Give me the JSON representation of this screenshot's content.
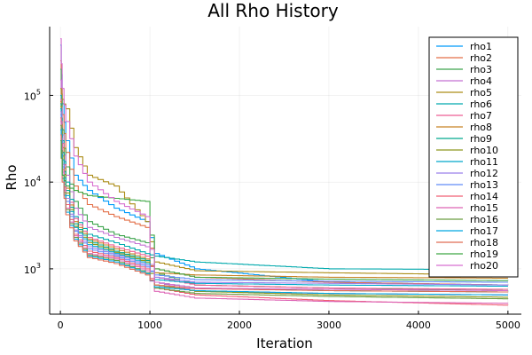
{
  "chart_data": {
    "type": "line",
    "title": "All Rho History",
    "xlabel": "Iteration",
    "ylabel": "Rho",
    "xlim": [
      -120,
      5150
    ],
    "ylim": [
      300,
      620000
    ],
    "yscale": "log",
    "grid": true,
    "legend_position": "top-right",
    "x_ticks": [
      {
        "value": 0,
        "label": "0"
      },
      {
        "value": 1000,
        "label": "1000"
      },
      {
        "value": 2000,
        "label": "2000"
      },
      {
        "value": 3000,
        "label": "3000"
      },
      {
        "value": 4000,
        "label": "4000"
      },
      {
        "value": 5000,
        "label": "5000"
      }
    ],
    "y_ticks": [
      {
        "value": 1000,
        "base": "10",
        "exp": "3"
      },
      {
        "value": 10000,
        "base": "10",
        "exp": "4"
      },
      {
        "value": 100000,
        "base": "10",
        "exp": "5"
      }
    ],
    "series": [
      {
        "name": "rho1",
        "color": "#009AFA",
        "points": [
          [
            0,
            380000
          ],
          [
            20,
            80000
          ],
          [
            60,
            30000
          ],
          [
            150,
            12000
          ],
          [
            300,
            8000
          ],
          [
            600,
            5000
          ],
          [
            950,
            3500
          ],
          [
            1050,
            1500
          ],
          [
            1500,
            1000
          ],
          [
            3000,
            700
          ],
          [
            5000,
            650
          ]
        ]
      },
      {
        "name": "rho2",
        "color": "#E36F47",
        "points": [
          [
            0,
            250000
          ],
          [
            20,
            60000
          ],
          [
            60,
            22000
          ],
          [
            150,
            9000
          ],
          [
            300,
            5500
          ],
          [
            600,
            4000
          ],
          [
            950,
            3000
          ],
          [
            1050,
            1000
          ],
          [
            1500,
            800
          ],
          [
            3000,
            700
          ],
          [
            5000,
            650
          ]
        ]
      },
      {
        "name": "rho3",
        "color": "#3EA44E",
        "points": [
          [
            0,
            200000
          ],
          [
            20,
            40000
          ],
          [
            60,
            15000
          ],
          [
            150,
            6000
          ],
          [
            300,
            3500
          ],
          [
            600,
            2500
          ],
          [
            950,
            2000
          ],
          [
            1050,
            900
          ],
          [
            1500,
            650
          ],
          [
            3000,
            600
          ],
          [
            5000,
            560
          ]
        ]
      },
      {
        "name": "rho4",
        "color": "#C371D2",
        "points": [
          [
            0,
            150000
          ],
          [
            20,
            35000
          ],
          [
            60,
            12000
          ],
          [
            150,
            5000
          ],
          [
            300,
            3000
          ],
          [
            600,
            2300
          ],
          [
            950,
            1800
          ],
          [
            1050,
            700
          ],
          [
            1500,
            550
          ],
          [
            3000,
            520
          ],
          [
            5000,
            500
          ]
        ]
      },
      {
        "name": "rho5",
        "color": "#AC8D18",
        "points": [
          [
            0,
            120000
          ],
          [
            20,
            90000
          ],
          [
            60,
            70000
          ],
          [
            150,
            25000
          ],
          [
            300,
            12000
          ],
          [
            600,
            9000
          ],
          [
            950,
            3500
          ],
          [
            1050,
            1200
          ],
          [
            1500,
            950
          ],
          [
            3000,
            900
          ],
          [
            5000,
            850
          ]
        ]
      },
      {
        "name": "rho6",
        "color": "#00A9AD",
        "points": [
          [
            0,
            100000
          ],
          [
            20,
            30000
          ],
          [
            60,
            10000
          ],
          [
            150,
            4000
          ],
          [
            300,
            2500
          ],
          [
            600,
            2000
          ],
          [
            950,
            1500
          ],
          [
            1050,
            1400
          ],
          [
            1500,
            1200
          ],
          [
            3000,
            1000
          ],
          [
            5000,
            980
          ]
        ]
      },
      {
        "name": "rho7",
        "color": "#ED5E93",
        "points": [
          [
            0,
            90000
          ],
          [
            20,
            28000
          ],
          [
            60,
            9000
          ],
          [
            150,
            3800
          ],
          [
            300,
            2300
          ],
          [
            600,
            1800
          ],
          [
            950,
            1400
          ],
          [
            1050,
            800
          ],
          [
            1500,
            650
          ],
          [
            3000,
            600
          ],
          [
            5000,
            580
          ]
        ]
      },
      {
        "name": "rho8",
        "color": "#C68225",
        "points": [
          [
            0,
            85000
          ],
          [
            20,
            25000
          ],
          [
            60,
            8500
          ],
          [
            150,
            3500
          ],
          [
            300,
            2200
          ],
          [
            600,
            1700
          ],
          [
            950,
            1300
          ],
          [
            1050,
            900
          ],
          [
            1500,
            850
          ],
          [
            3000,
            800
          ],
          [
            5000,
            780
          ]
        ]
      },
      {
        "name": "rho9",
        "color": "#00A98D",
        "points": [
          [
            0,
            80000
          ],
          [
            20,
            22000
          ],
          [
            60,
            8000
          ],
          [
            150,
            3300
          ],
          [
            300,
            2100
          ],
          [
            600,
            1600
          ],
          [
            950,
            1250
          ],
          [
            1050,
            700
          ],
          [
            1500,
            600
          ],
          [
            3000,
            560
          ],
          [
            5000,
            540
          ]
        ]
      },
      {
        "name": "rho10",
        "color": "#8E971D",
        "points": [
          [
            0,
            75000
          ],
          [
            20,
            20000
          ],
          [
            60,
            7500
          ],
          [
            150,
            3100
          ],
          [
            300,
            2000
          ],
          [
            600,
            1550
          ],
          [
            950,
            1200
          ],
          [
            1050,
            650
          ],
          [
            1500,
            550
          ],
          [
            3000,
            500
          ],
          [
            5000,
            470
          ]
        ]
      },
      {
        "name": "rho11",
        "color": "#00A8CB",
        "points": [
          [
            0,
            70000
          ],
          [
            20,
            18000
          ],
          [
            60,
            7000
          ],
          [
            150,
            3000
          ],
          [
            300,
            1900
          ],
          [
            600,
            1500
          ],
          [
            950,
            1150
          ],
          [
            1050,
            750
          ],
          [
            1500,
            680
          ],
          [
            3000,
            650
          ],
          [
            5000,
            630
          ]
        ]
      },
      {
        "name": "rho12",
        "color": "#9B7FE9",
        "points": [
          [
            0,
            65000
          ],
          [
            20,
            16000
          ],
          [
            60,
            6500
          ],
          [
            150,
            2800
          ],
          [
            300,
            1800
          ],
          [
            600,
            1450
          ],
          [
            950,
            1100
          ],
          [
            1050,
            800
          ],
          [
            1500,
            700
          ],
          [
            3000,
            680
          ],
          [
            5000,
            650
          ]
        ]
      },
      {
        "name": "rho13",
        "color": "#608CF6",
        "points": [
          [
            0,
            60000
          ],
          [
            20,
            15000
          ],
          [
            60,
            6000
          ],
          [
            150,
            2700
          ],
          [
            300,
            1700
          ],
          [
            600,
            1400
          ],
          [
            950,
            1050
          ],
          [
            1050,
            850
          ],
          [
            1500,
            750
          ],
          [
            3000,
            720
          ],
          [
            5000,
            700
          ]
        ]
      },
      {
        "name": "rho14",
        "color": "#F05F73",
        "points": [
          [
            0,
            55000
          ],
          [
            20,
            14000
          ],
          [
            60,
            5500
          ],
          [
            150,
            2500
          ],
          [
            300,
            1600
          ],
          [
            600,
            1350
          ],
          [
            950,
            1000
          ],
          [
            1050,
            600
          ],
          [
            1500,
            500
          ],
          [
            3000,
            430
          ],
          [
            5000,
            380
          ]
        ]
      },
      {
        "name": "rho15",
        "color": "#DD64B5",
        "points": [
          [
            0,
            50000
          ],
          [
            20,
            13000
          ],
          [
            60,
            5000
          ],
          [
            150,
            2400
          ],
          [
            300,
            1500
          ],
          [
            600,
            1300
          ],
          [
            950,
            950
          ],
          [
            1050,
            550
          ],
          [
            1500,
            460
          ],
          [
            3000,
            420
          ],
          [
            5000,
            400
          ]
        ]
      },
      {
        "name": "rho16",
        "color": "#6B9D42",
        "points": [
          [
            0,
            45000
          ],
          [
            20,
            12000
          ],
          [
            60,
            4800
          ],
          [
            150,
            2300
          ],
          [
            300,
            1450
          ],
          [
            600,
            1250
          ],
          [
            950,
            900
          ],
          [
            1050,
            600
          ],
          [
            1500,
            520
          ],
          [
            3000,
            480
          ],
          [
            5000,
            450
          ]
        ]
      },
      {
        "name": "rho17",
        "color": "#00A6E0",
        "points": [
          [
            0,
            40000
          ],
          [
            20,
            11000
          ],
          [
            60,
            4500
          ],
          [
            150,
            2200
          ],
          [
            300,
            1400
          ],
          [
            600,
            1200
          ],
          [
            950,
            880
          ],
          [
            1050,
            620
          ],
          [
            1500,
            560
          ],
          [
            3000,
            520
          ],
          [
            5000,
            500
          ]
        ]
      },
      {
        "name": "rho18",
        "color": "#E16C53",
        "points": [
          [
            0,
            35000
          ],
          [
            20,
            10000
          ],
          [
            60,
            4200
          ],
          [
            150,
            2100
          ],
          [
            300,
            1350
          ],
          [
            600,
            1150
          ],
          [
            950,
            850
          ],
          [
            1050,
            650
          ],
          [
            1500,
            590
          ],
          [
            3000,
            560
          ],
          [
            5000,
            540
          ]
        ]
      },
      {
        "name": "rho19",
        "color": "#3FA745",
        "points": [
          [
            0,
            30000
          ],
          [
            20,
            12000
          ],
          [
            60,
            9000
          ],
          [
            150,
            8000
          ],
          [
            300,
            7000
          ],
          [
            600,
            6500
          ],
          [
            950,
            6000
          ],
          [
            1050,
            1000
          ],
          [
            1500,
            800
          ],
          [
            3000,
            760
          ],
          [
            5000,
            730
          ]
        ]
      },
      {
        "name": "rho20",
        "color": "#D86FD0",
        "points": [
          [
            0,
            450000
          ],
          [
            20,
            120000
          ],
          [
            60,
            50000
          ],
          [
            150,
            20000
          ],
          [
            300,
            10000
          ],
          [
            600,
            6000
          ],
          [
            950,
            4000
          ],
          [
            1050,
            700
          ],
          [
            1500,
            600
          ],
          [
            3000,
            580
          ],
          [
            5000,
            560
          ]
        ]
      }
    ]
  }
}
